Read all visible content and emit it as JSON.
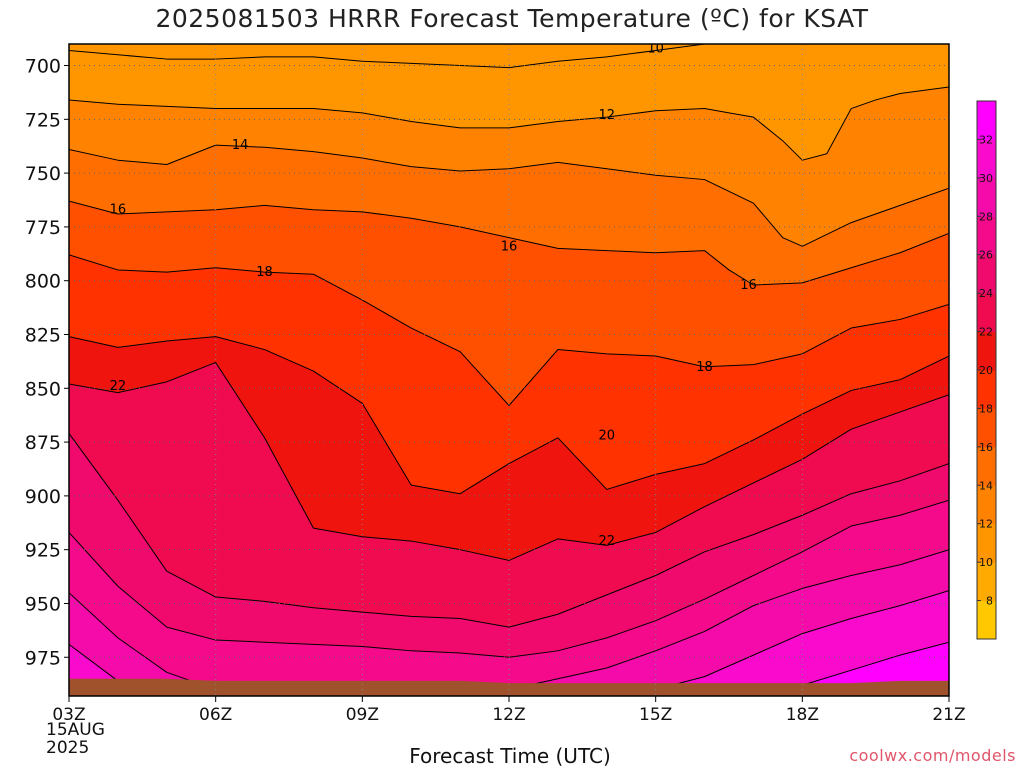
{
  "title": "2025081503 HRRR Forecast Temperature (ºC) for KSAT",
  "xlabel": "Forecast Time (UTC)",
  "credit": "coolwx.com/models",
  "date_label": [
    "15AUG",
    "2025"
  ],
  "colors": {
    "ground": "#a0522d",
    "contour_line": "#000000",
    "grid": "#666666"
  },
  "chart_data": {
    "type": "heatmap",
    "title": "2025081503 HRRR Forecast Temperature (ºC) for KSAT",
    "xlabel": "Forecast Time (UTC)",
    "ylabel": "",
    "x_ticks": [
      "03Z",
      "06Z",
      "09Z",
      "12Z",
      "15Z",
      "18Z",
      "21Z"
    ],
    "x_range_hours": [
      3,
      21
    ],
    "y_ticks": [
      700,
      725,
      750,
      775,
      800,
      825,
      850,
      875,
      900,
      925,
      950,
      975
    ],
    "y_range_hpa": [
      690,
      993
    ],
    "y_axis": "pressure (hPa), inverted",
    "grid": true,
    "colorbar": {
      "levels": [
        6,
        8,
        10,
        12,
        14,
        16,
        18,
        20,
        22,
        24,
        26,
        28,
        30,
        32,
        34
      ],
      "tick_labels": [
        "8",
        "10",
        "12",
        "14",
        "16",
        "18",
        "20",
        "22",
        "24",
        "26",
        "28",
        "30",
        "32"
      ],
      "colors": [
        "#ffc800",
        "#ffaa00",
        "#ff9600",
        "#ff8200",
        "#ff6e00",
        "#ff5000",
        "#ff3200",
        "#f0140f",
        "#f00a50",
        "#f00a6e",
        "#f50a8c",
        "#f50aaa",
        "#fa0acd",
        "#ff00ff"
      ]
    },
    "series": [
      {
        "level": 10,
        "x": [
          3,
          4,
          5,
          6,
          7,
          8,
          9,
          10,
          11,
          12,
          13,
          14,
          15,
          16,
          17,
          18,
          19,
          20,
          21
        ],
        "y": [
          693,
          695,
          697,
          697,
          696,
          696,
          698,
          699,
          700,
          701,
          698,
          696,
          693,
          690,
          690,
          690,
          690,
          690,
          690
        ]
      },
      {
        "level": 12,
        "x": [
          3,
          4,
          5,
          6,
          7,
          8,
          9,
          10,
          11,
          12,
          13,
          14,
          15,
          16,
          16.5,
          17,
          17.6,
          18,
          18.5,
          19,
          19.5,
          20,
          21
        ],
        "y": [
          716,
          718,
          719,
          720,
          720,
          720,
          722,
          726,
          729,
          729,
          726,
          724,
          721,
          720,
          722,
          724,
          735,
          744,
          741,
          720,
          716,
          713,
          710
        ]
      },
      {
        "level": 14,
        "x": [
          3,
          4,
          5,
          6,
          7,
          8,
          9,
          10,
          11,
          12,
          13,
          14,
          15,
          16,
          17,
          17.6,
          18,
          19,
          20,
          21
        ],
        "y": [
          739,
          744,
          746,
          737,
          738,
          740,
          743,
          747,
          749,
          748,
          745,
          748,
          751,
          753,
          764,
          780,
          784,
          773,
          765,
          757
        ]
      },
      {
        "level": 16,
        "x": [
          3,
          4,
          5,
          6,
          7,
          8,
          9,
          10,
          11,
          12,
          13,
          14,
          15,
          16,
          16.5,
          17,
          18,
          19,
          20,
          21
        ],
        "y": [
          763,
          769,
          768,
          767,
          765,
          767,
          768,
          771,
          775,
          780,
          785,
          786,
          787,
          786,
          795,
          802,
          801,
          794,
          787,
          778
        ]
      },
      {
        "level": 18,
        "x": [
          3,
          4,
          5,
          6,
          7,
          8,
          9,
          10,
          11,
          12,
          13,
          14,
          15,
          16,
          17,
          18,
          19,
          20,
          21
        ],
        "y": [
          788,
          795,
          796,
          794,
          796,
          797,
          809,
          822,
          833,
          858,
          832,
          834,
          835,
          840,
          839,
          834,
          822,
          818,
          811
        ]
      },
      {
        "level": 20,
        "x": [
          3,
          4,
          5,
          6,
          7,
          8,
          9,
          10,
          11,
          12,
          13,
          14,
          15,
          16,
          17,
          18,
          19,
          20,
          21
        ],
        "y": [
          826,
          831,
          828,
          826,
          832,
          842,
          857,
          895,
          899,
          885,
          873,
          897,
          890,
          885,
          874,
          862,
          851,
          846,
          835
        ]
      },
      {
        "level": 22,
        "x": [
          3,
          4,
          5,
          6,
          7,
          8,
          9,
          10,
          11,
          12,
          13,
          14,
          15,
          16,
          17,
          18,
          19,
          20,
          21
        ],
        "y": [
          848,
          852,
          847,
          838,
          873,
          915,
          919,
          921,
          925,
          930,
          920,
          923,
          917,
          905,
          894,
          883,
          869,
          861,
          853
        ]
      },
      {
        "level": 24,
        "x": [
          3,
          4,
          5,
          6,
          7,
          8,
          9,
          10,
          11,
          12,
          13,
          14,
          15,
          16,
          17,
          18,
          19,
          20,
          21
        ],
        "y": [
          871,
          902,
          935,
          947,
          949,
          952,
          954,
          956,
          957,
          961,
          955,
          946,
          937,
          926,
          918,
          909,
          899,
          893,
          885
        ]
      },
      {
        "level": 26,
        "x": [
          3,
          4,
          5,
          6,
          7,
          8,
          9,
          10,
          11,
          12,
          13,
          14,
          15,
          16,
          17,
          18,
          19,
          20,
          21
        ],
        "y": [
          917,
          942,
          961,
          967,
          968,
          969,
          970,
          972,
          973,
          975,
          972,
          966,
          958,
          948,
          937,
          926,
          914,
          909,
          902
        ]
      },
      {
        "level": 28,
        "x": [
          3,
          4,
          5,
          6,
          7,
          8,
          9,
          10,
          11,
          12,
          13,
          14,
          15,
          16,
          17,
          18,
          19,
          20,
          21
        ],
        "y": [
          945,
          966,
          982,
          990,
          990,
          990,
          990,
          990,
          990,
          990,
          985,
          980,
          972,
          963,
          951,
          943,
          937,
          932,
          925
        ]
      },
      {
        "level": 30,
        "x": [
          3,
          4,
          5,
          6,
          7,
          8,
          9,
          10,
          11,
          12,
          13,
          14,
          15,
          16,
          17,
          18,
          19,
          20,
          21
        ],
        "y": [
          969,
          986,
          990,
          990,
          990,
          990,
          990,
          990,
          990,
          990,
          990,
          990,
          990,
          984,
          974,
          964,
          957,
          951,
          944
        ]
      },
      {
        "level": 32,
        "x": [
          3,
          4,
          5,
          6,
          7,
          8,
          9,
          10,
          11,
          12,
          13,
          14,
          15,
          16,
          17,
          18,
          19,
          20,
          21
        ],
        "y": [
          990,
          990,
          990,
          990,
          990,
          990,
          990,
          990,
          990,
          990,
          990,
          990,
          990,
          990,
          990,
          988,
          981,
          974,
          968
        ]
      }
    ],
    "contour_labels": [
      {
        "text": "10",
        "x": 15.0,
        "y": 692
      },
      {
        "text": "12",
        "x": 14.0,
        "y": 723
      },
      {
        "text": "14",
        "x": 6.5,
        "y": 737
      },
      {
        "text": "16",
        "x": 4.0,
        "y": 767
      },
      {
        "text": "16",
        "x": 12.0,
        "y": 784
      },
      {
        "text": "16",
        "x": 16.9,
        "y": 802
      },
      {
        "text": "18",
        "x": 7.0,
        "y": 796
      },
      {
        "text": "18",
        "x": 16.0,
        "y": 840
      },
      {
        "text": "20",
        "x": 14.0,
        "y": 872
      },
      {
        "text": "22",
        "x": 4.0,
        "y": 849
      },
      {
        "text": "22",
        "x": 14.0,
        "y": 921
      }
    ],
    "ground_pressure": [
      985,
      985,
      985,
      986,
      986,
      986,
      986,
      986,
      986,
      987,
      987,
      987,
      987,
      987,
      987,
      987,
      987,
      986,
      986
    ],
    "ground_x": [
      3,
      4,
      5,
      6,
      7,
      8,
      9,
      10,
      11,
      12,
      13,
      14,
      15,
      16,
      17,
      18,
      19,
      20,
      21
    ]
  }
}
